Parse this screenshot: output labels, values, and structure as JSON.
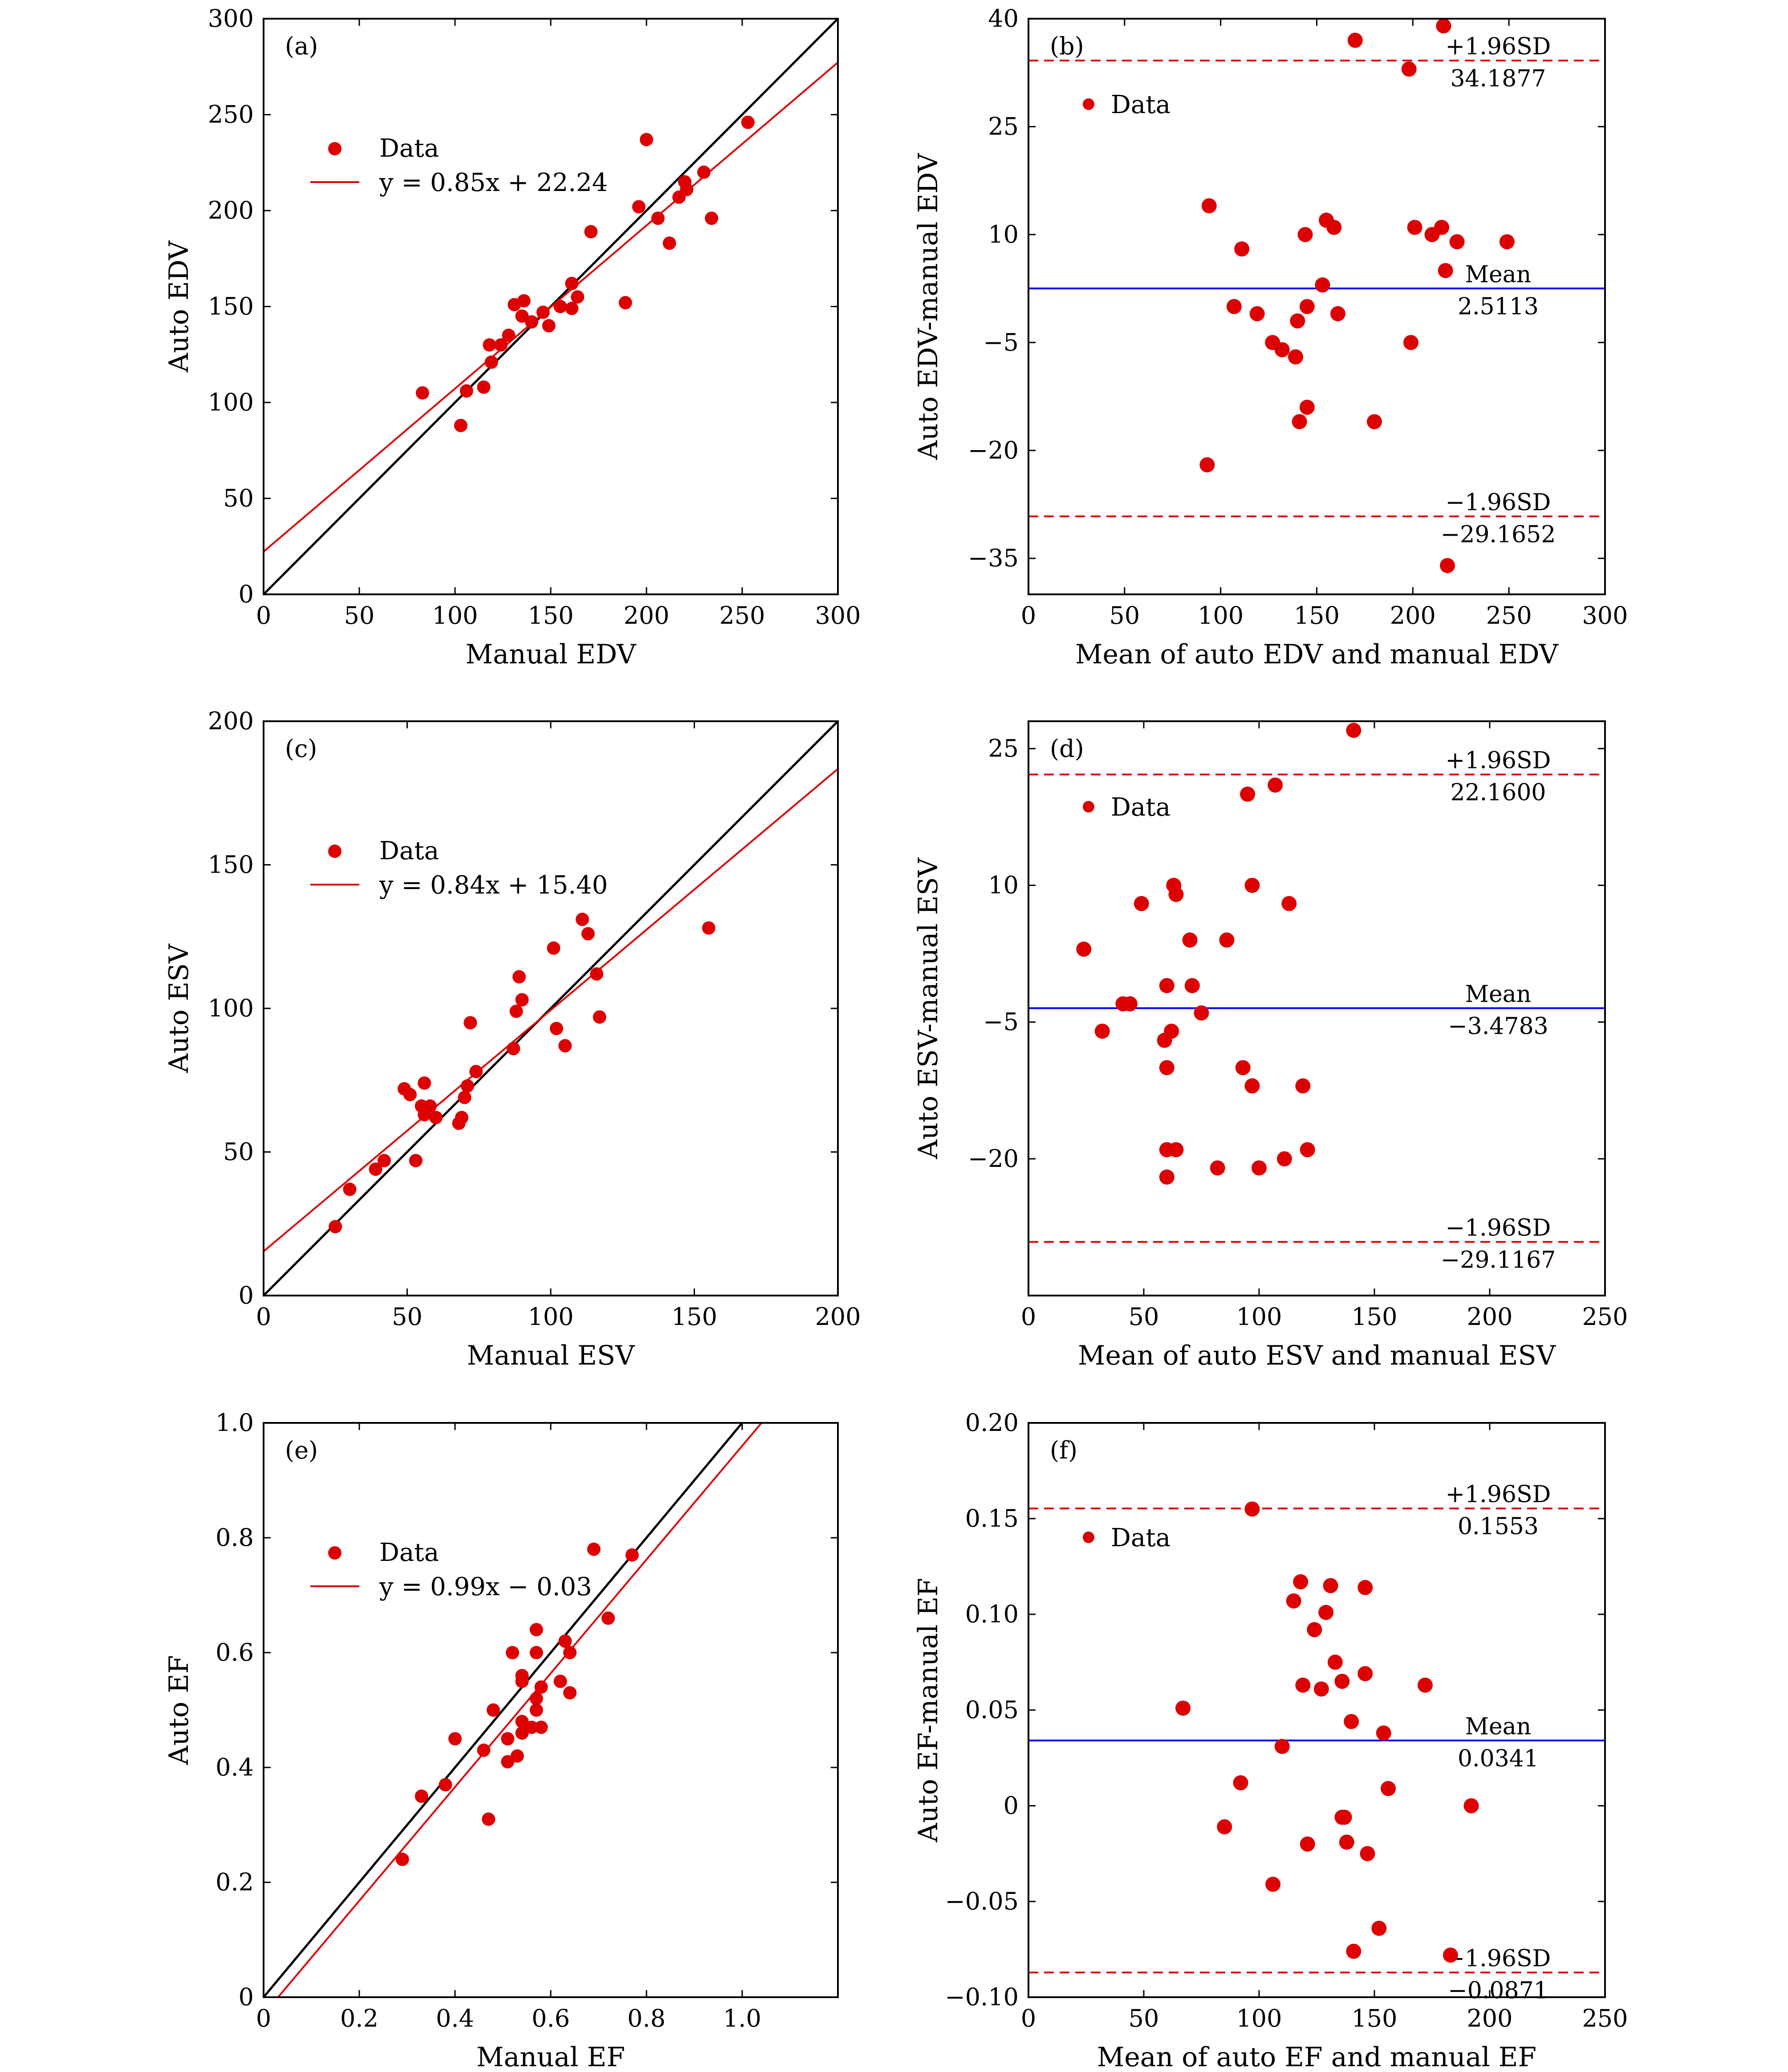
{
  "chart_data": [
    {
      "id": "a",
      "type": "scatter",
      "panel_label": "(a)",
      "xlabel": "Manual EDV",
      "ylabel": "Auto EDV",
      "xlim": [
        0,
        300
      ],
      "ylim": [
        0,
        300
      ],
      "xticks": [
        0,
        50,
        100,
        150,
        200,
        250,
        300
      ],
      "yticks": [
        0,
        50,
        100,
        150,
        200,
        250,
        300
      ],
      "xtick_labels": [
        "0",
        "50",
        "100",
        "150",
        "200",
        "250",
        "300"
      ],
      "ytick_labels": [
        "0",
        "50",
        "100",
        "150",
        "200",
        "250",
        "300"
      ],
      "identity_line": true,
      "fit": {
        "slope": 0.85,
        "intercept": 22.24
      },
      "legend": {
        "points": "Data",
        "fit": "y = 0.85x + 22.24"
      },
      "points": [
        [
          83,
          105
        ],
        [
          103,
          88
        ],
        [
          106,
          106
        ],
        [
          115,
          108
        ],
        [
          118,
          130
        ],
        [
          119,
          121
        ],
        [
          124,
          130
        ],
        [
          128,
          135
        ],
        [
          131,
          151
        ],
        [
          135,
          145
        ],
        [
          136,
          153
        ],
        [
          140,
          142
        ],
        [
          146,
          147
        ],
        [
          149,
          140
        ],
        [
          155,
          150
        ],
        [
          161,
          149
        ],
        [
          161,
          162
        ],
        [
          164,
          155
        ],
        [
          171,
          189
        ],
        [
          189,
          152
        ],
        [
          196,
          202
        ],
        [
          200,
          237
        ],
        [
          206,
          196
        ],
        [
          212,
          183
        ],
        [
          217,
          207
        ],
        [
          220,
          215
        ],
        [
          221,
          211
        ],
        [
          230,
          220
        ],
        [
          234,
          196
        ],
        [
          253,
          246
        ]
      ]
    },
    {
      "id": "b",
      "type": "scatter",
      "panel_label": "(b)",
      "xlabel": "Mean of auto EDV and manual EDV",
      "ylabel": "Auto EDV-manual EDV",
      "xlim": [
        0,
        300
      ],
      "ylim": [
        -40,
        40
      ],
      "xticks": [
        0,
        50,
        100,
        150,
        200,
        250,
        300
      ],
      "yticks": [
        -35,
        -20,
        -5,
        10,
        25,
        40
      ],
      "xtick_labels": [
        "0",
        "50",
        "100",
        "150",
        "200",
        "250",
        "300"
      ],
      "ytick_labels": [
        "−35",
        "−20",
        "−5",
        "10",
        "25",
        "40"
      ],
      "legend": {
        "points": "Data"
      },
      "mean": 2.5113,
      "upper": 34.1877,
      "lower": -29.1652,
      "mean_label": "Mean",
      "mean_value": "2.5113",
      "upper_label": "+1.96SD",
      "upper_value": "34.1877",
      "lower_label": "−1.96SD",
      "lower_value": "−29.1652",
      "points": [
        [
          94,
          14
        ],
        [
          93,
          -22
        ],
        [
          107,
          0
        ],
        [
          111,
          8
        ],
        [
          119,
          -1
        ],
        [
          127,
          -5
        ],
        [
          132,
          -6
        ],
        [
          139,
          -7
        ],
        [
          140,
          -2
        ],
        [
          141,
          -16
        ],
        [
          144,
          10
        ],
        [
          145,
          0
        ],
        [
          145,
          -14
        ],
        [
          153,
          3
        ],
        [
          155,
          12
        ],
        [
          159,
          11
        ],
        [
          161,
          -1
        ],
        [
          170,
          37
        ],
        [
          180,
          -16
        ],
        [
          198,
          33
        ],
        [
          199,
          -5
        ],
        [
          201,
          11
        ],
        [
          210,
          10
        ],
        [
          215,
          11
        ],
        [
          217,
          5
        ],
        [
          216,
          39
        ],
        [
          223,
          9
        ],
        [
          218,
          -36
        ],
        [
          249,
          9
        ]
      ]
    },
    {
      "id": "c",
      "type": "scatter",
      "panel_label": "(c)",
      "xlabel": "Manual ESV",
      "ylabel": "Auto ESV",
      "xlim": [
        0,
        200
      ],
      "ylim": [
        0,
        200
      ],
      "xticks": [
        0,
        50,
        100,
        150,
        200
      ],
      "yticks": [
        0,
        50,
        100,
        150,
        200
      ],
      "xtick_labels": [
        "0",
        "50",
        "100",
        "150",
        "200"
      ],
      "ytick_labels": [
        "0",
        "50",
        "100",
        "150",
        "200"
      ],
      "identity_line": true,
      "fit": {
        "slope": 0.84,
        "intercept": 15.4
      },
      "legend": {
        "points": "Data",
        "fit": "y = 0.84x + 15.40"
      },
      "points": [
        [
          25,
          24
        ],
        [
          30,
          37
        ],
        [
          39,
          44
        ],
        [
          42,
          47
        ],
        [
          49,
          72
        ],
        [
          51,
          70
        ],
        [
          53,
          47
        ],
        [
          55,
          66
        ],
        [
          56,
          63
        ],
        [
          56,
          74
        ],
        [
          58,
          66
        ],
        [
          60,
          62
        ],
        [
          68,
          60
        ],
        [
          69,
          62
        ],
        [
          70,
          69
        ],
        [
          71,
          73
        ],
        [
          72,
          95
        ],
        [
          74,
          78
        ],
        [
          87,
          86
        ],
        [
          88,
          99
        ],
        [
          89,
          111
        ],
        [
          90,
          103
        ],
        [
          101,
          121
        ],
        [
          102,
          93
        ],
        [
          105,
          87
        ],
        [
          111,
          131
        ],
        [
          113,
          126
        ],
        [
          116,
          112
        ],
        [
          117,
          97
        ],
        [
          155,
          128
        ]
      ]
    },
    {
      "id": "d",
      "type": "scatter",
      "panel_label": "(d)",
      "xlabel": "Mean of auto ESV and manual ESV",
      "ylabel": "Auto ESV-manual ESV",
      "xlim": [
        0,
        250
      ],
      "ylim": [
        -35,
        28
      ],
      "xticks": [
        0,
        50,
        100,
        150,
        200,
        250
      ],
      "yticks": [
        -20,
        -5,
        10,
        25
      ],
      "xtick_labels": [
        "0",
        "50",
        "100",
        "150",
        "200",
        "250"
      ],
      "ytick_labels": [
        "−20",
        "−5",
        "10",
        "25"
      ],
      "legend": {
        "points": "Data"
      },
      "mean": -3.4783,
      "upper": 22.16,
      "lower": -29.1167,
      "mean_label": "Mean",
      "mean_value": "−3.4783",
      "upper_label": "+1.96SD",
      "upper_value": "22.1600",
      "lower_label": "−1.96SD",
      "lower_value": "−29.1167",
      "points": [
        [
          24,
          3
        ],
        [
          32,
          -6
        ],
        [
          41,
          -3
        ],
        [
          44,
          -3
        ],
        [
          49,
          8
        ],
        [
          59,
          -7
        ],
        [
          60,
          -10
        ],
        [
          60,
          -1
        ],
        [
          60,
          -19
        ],
        [
          60,
          -22
        ],
        [
          62,
          -6
        ],
        [
          63,
          10
        ],
        [
          64,
          9
        ],
        [
          64,
          -19
        ],
        [
          70,
          4
        ],
        [
          71,
          -1
        ],
        [
          75,
          -4
        ],
        [
          82,
          -21
        ],
        [
          86,
          4
        ],
        [
          93,
          -10
        ],
        [
          95,
          20
        ],
        [
          97,
          -12
        ],
        [
          97,
          10
        ],
        [
          100,
          -21
        ],
        [
          107,
          21
        ],
        [
          111,
          -20
        ],
        [
          113,
          8
        ],
        [
          119,
          -12
        ],
        [
          121,
          -19
        ],
        [
          141,
          27
        ]
      ]
    },
    {
      "id": "e",
      "type": "scatter",
      "panel_label": "(e)",
      "xlabel": "Manual EF",
      "ylabel": "Auto EF",
      "xlim": [
        0,
        1.2
      ],
      "ylim": [
        0,
        1.0
      ],
      "xticks": [
        0,
        0.2,
        0.4,
        0.6,
        0.8,
        1.0
      ],
      "yticks": [
        0,
        0.2,
        0.4,
        0.6,
        0.8,
        1.0
      ],
      "xtick_labels": [
        "0",
        "0.2",
        "0.4",
        "0.6",
        "0.8",
        "1.0"
      ],
      "ytick_labels": [
        "0",
        "0.2",
        "0.4",
        "0.6",
        "0.8",
        "1.0"
      ],
      "identity_line": true,
      "fit": {
        "slope": 0.99,
        "intercept": -0.03
      },
      "legend": {
        "points": "Data",
        "fit": "y = 0.99x − 0.03"
      },
      "points": [
        [
          0.29,
          0.24
        ],
        [
          0.33,
          0.35
        ],
        [
          0.38,
          0.37
        ],
        [
          0.4,
          0.45
        ],
        [
          0.46,
          0.43
        ],
        [
          0.47,
          0.31
        ],
        [
          0.48,
          0.5
        ],
        [
          0.51,
          0.45
        ],
        [
          0.51,
          0.41
        ],
        [
          0.52,
          0.6
        ],
        [
          0.53,
          0.42
        ],
        [
          0.54,
          0.48
        ],
        [
          0.54,
          0.46
        ],
        [
          0.54,
          0.55
        ],
        [
          0.54,
          0.56
        ],
        [
          0.56,
          0.47
        ],
        [
          0.57,
          0.5
        ],
        [
          0.57,
          0.52
        ],
        [
          0.57,
          0.6
        ],
        [
          0.57,
          0.64
        ],
        [
          0.58,
          0.47
        ],
        [
          0.58,
          0.54
        ],
        [
          0.62,
          0.55
        ],
        [
          0.63,
          0.62
        ],
        [
          0.64,
          0.6
        ],
        [
          0.64,
          0.53
        ],
        [
          0.69,
          0.78
        ],
        [
          0.72,
          0.66
        ],
        [
          0.77,
          0.77
        ]
      ]
    },
    {
      "id": "f",
      "type": "scatter",
      "panel_label": "(f)",
      "xlabel": "Mean of auto EF and manual EF",
      "ylabel": "Auto EF-manual EF",
      "xlim": [
        0,
        250
      ],
      "ylim": [
        -0.1,
        0.2
      ],
      "xticks": [
        0,
        50,
        100,
        150,
        200,
        250
      ],
      "yticks": [
        -0.1,
        -0.05,
        0,
        0.05,
        0.1,
        0.15,
        0.2
      ],
      "xtick_labels": [
        "0",
        "50",
        "100",
        "150",
        "200",
        "250"
      ],
      "ytick_labels": [
        "−0.10",
        "−0.05",
        "0",
        "0.05",
        "0.10",
        "0.15",
        "0.20"
      ],
      "legend": {
        "points": "Data"
      },
      "mean": 0.0341,
      "upper": 0.1553,
      "lower": -0.0871,
      "mean_label": "Mean",
      "mean_value": "0.0341",
      "upper_label": "+1.96SD",
      "upper_value": "0.1553",
      "lower_label": "−1.96SD",
      "lower_value": "−0.0871",
      "points": [
        [
          67,
          0.051
        ],
        [
          85,
          -0.011
        ],
        [
          92,
          0.012
        ],
        [
          97,
          0.155
        ],
        [
          106,
          -0.041
        ],
        [
          110,
          0.031
        ],
        [
          115,
          0.107
        ],
        [
          118,
          0.117
        ],
        [
          119,
          0.063
        ],
        [
          121,
          -0.02
        ],
        [
          124,
          0.092
        ],
        [
          127,
          0.061
        ],
        [
          129,
          0.101
        ],
        [
          131,
          0.115
        ],
        [
          133,
          0.075
        ],
        [
          136,
          -0.006
        ],
        [
          136,
          0.065
        ],
        [
          137,
          -0.006
        ],
        [
          138,
          -0.019
        ],
        [
          140,
          0.044
        ],
        [
          141,
          -0.076
        ],
        [
          146,
          0.114
        ],
        [
          146,
          0.069
        ],
        [
          147,
          -0.025
        ],
        [
          152,
          -0.064
        ],
        [
          154,
          0.038
        ],
        [
          156,
          0.009
        ],
        [
          172,
          0.063
        ],
        [
          183,
          -0.078
        ],
        [
          192,
          0.0
        ]
      ]
    }
  ]
}
